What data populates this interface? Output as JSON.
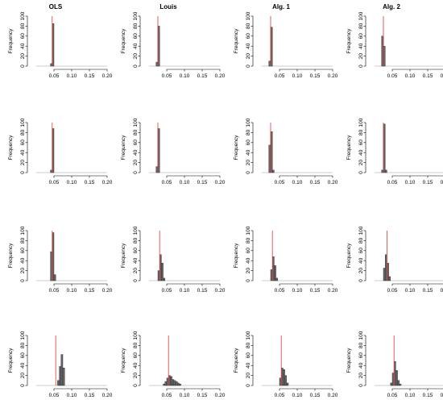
{
  "figure": {
    "column_titles": [
      "OLS",
      "Louis",
      "Alg. 1",
      "Alg. 2"
    ]
  },
  "chart_data": [
    {
      "type": "bar",
      "panel": "row1-OLS",
      "title": "OLS",
      "xlabel": "",
      "ylabel": "Frequency",
      "xlim": [
        0.0,
        0.2
      ],
      "ylim": [
        0,
        100
      ],
      "xticks": [
        "0.05",
        "0.10",
        "0.15",
        "0.20"
      ],
      "yticks": [
        "0",
        "20",
        "40",
        "60",
        "80",
        "100"
      ],
      "reference_line": 0.045,
      "bins_x": [
        0.04,
        0.045
      ],
      "values": [
        5,
        85
      ]
    },
    {
      "type": "bar",
      "panel": "row1-Louis",
      "title": "Louis",
      "xlabel": "",
      "ylabel": "Frequency",
      "xlim": [
        0.0,
        0.2
      ],
      "ylim": [
        0,
        100
      ],
      "xticks": [
        "0.05",
        "0.10",
        "0.15",
        "0.20"
      ],
      "yticks": [
        "0",
        "20",
        "40",
        "60",
        "80",
        "100"
      ],
      "reference_line": 0.025,
      "bins_x": [
        0.02,
        0.025
      ],
      "values": [
        8,
        80
      ]
    },
    {
      "type": "bar",
      "panel": "row1-Alg1",
      "title": "Alg. 1",
      "xlabel": "",
      "ylabel": "Frequency",
      "xlim": [
        0.0,
        0.2
      ],
      "ylim": [
        0,
        100
      ],
      "xticks": [
        "0.05",
        "0.10",
        "0.15",
        "0.20"
      ],
      "yticks": [
        "0",
        "20",
        "40",
        "60",
        "80",
        "100"
      ],
      "reference_line": 0.025,
      "bins_x": [
        0.02,
        0.025
      ],
      "values": [
        10,
        78
      ]
    },
    {
      "type": "bar",
      "panel": "row1-Alg2",
      "title": "Alg. 2",
      "xlabel": "",
      "ylabel": "Frequency",
      "xlim": [
        0.0,
        0.2
      ],
      "ylim": [
        0,
        100
      ],
      "xticks": [
        "0.05",
        "0.10",
        "0.15",
        "0.20"
      ],
      "yticks": [
        "0",
        "20",
        "40",
        "60",
        "80",
        "100"
      ],
      "reference_line": 0.025,
      "bins_x": [
        0.02,
        0.025
      ],
      "values": [
        60,
        40
      ]
    },
    {
      "type": "bar",
      "panel": "row2-OLS",
      "xlabel": "",
      "ylabel": "Frequency",
      "xlim": [
        0.0,
        0.2
      ],
      "ylim": [
        0,
        100
      ],
      "xticks": [
        "0.05",
        "0.10",
        "0.15",
        "0.20"
      ],
      "yticks": [
        "0",
        "20",
        "40",
        "60",
        "80",
        "100"
      ],
      "reference_line": 0.045,
      "bins_x": [
        0.04,
        0.045
      ],
      "values": [
        5,
        88
      ]
    },
    {
      "type": "bar",
      "panel": "row2-Louis",
      "xlabel": "",
      "ylabel": "Frequency",
      "xlim": [
        0.0,
        0.2
      ],
      "ylim": [
        0,
        100
      ],
      "xticks": [
        "0.05",
        "0.10",
        "0.15",
        "0.20"
      ],
      "yticks": [
        "0",
        "20",
        "40",
        "60",
        "80",
        "100"
      ],
      "reference_line": 0.025,
      "bins_x": [
        0.02,
        0.025
      ],
      "values": [
        12,
        88
      ]
    },
    {
      "type": "bar",
      "panel": "row2-Alg1",
      "xlabel": "",
      "ylabel": "Frequency",
      "xlim": [
        0.0,
        0.2
      ],
      "ylim": [
        0,
        100
      ],
      "xticks": [
        "0.05",
        "0.10",
        "0.15",
        "0.20"
      ],
      "yticks": [
        "0",
        "20",
        "40",
        "60",
        "80",
        "100"
      ],
      "reference_line": 0.025,
      "bins_x": [
        0.02,
        0.025,
        0.03
      ],
      "values": [
        55,
        82,
        5
      ]
    },
    {
      "type": "bar",
      "panel": "row2-Alg2",
      "xlabel": "",
      "ylabel": "Frequency",
      "xlim": [
        0.0,
        0.2
      ],
      "ylim": [
        0,
        100
      ],
      "xticks": [
        "0.05",
        "0.10",
        "0.15",
        "0.20"
      ],
      "yticks": [
        "0",
        "20",
        "40",
        "60",
        "80",
        "100"
      ],
      "reference_line": 0.025,
      "bins_x": [
        0.02,
        0.025,
        0.03
      ],
      "values": [
        5,
        97,
        5
      ]
    },
    {
      "type": "bar",
      "panel": "row3-OLS",
      "xlabel": "",
      "ylabel": "Frequency",
      "xlim": [
        0.0,
        0.2
      ],
      "ylim": [
        0,
        100
      ],
      "xticks": [
        "0.05",
        "0.10",
        "0.15",
        "0.20"
      ],
      "yticks": [
        "0",
        "20",
        "40",
        "60",
        "80",
        "100"
      ],
      "reference_line": 0.045,
      "bins_x": [
        0.04,
        0.045,
        0.05
      ],
      "values": [
        58,
        96,
        12
      ]
    },
    {
      "type": "bar",
      "panel": "row3-Louis",
      "xlabel": "",
      "ylabel": "Frequency",
      "xlim": [
        0.0,
        0.2
      ],
      "ylim": [
        0,
        100
      ],
      "xticks": [
        "0.05",
        "0.10",
        "0.15",
        "0.20"
      ],
      "yticks": [
        "0",
        "20",
        "40",
        "60",
        "80",
        "100"
      ],
      "reference_line": 0.03,
      "bins_x": [
        0.025,
        0.03,
        0.035,
        0.04
      ],
      "values": [
        20,
        52,
        35,
        5
      ]
    },
    {
      "type": "bar",
      "panel": "row3-Alg1",
      "xlabel": "",
      "ylabel": "Frequency",
      "xlim": [
        0.0,
        0.2
      ],
      "ylim": [
        0,
        100
      ],
      "xticks": [
        "0.05",
        "0.10",
        "0.15",
        "0.20"
      ],
      "yticks": [
        "0",
        "20",
        "40",
        "60",
        "80",
        "100"
      ],
      "reference_line": 0.03,
      "bins_x": [
        0.025,
        0.03,
        0.035,
        0.04
      ],
      "values": [
        22,
        48,
        30,
        5
      ]
    },
    {
      "type": "bar",
      "panel": "row3-Alg2",
      "xlabel": "",
      "ylabel": "Frequency",
      "xlim": [
        0.0,
        0.2
      ],
      "ylim": [
        0,
        100
      ],
      "xticks": [
        "0.05",
        "0.10",
        "0.15",
        "0.20"
      ],
      "yticks": [
        "0",
        "20",
        "40",
        "60",
        "80",
        "100"
      ],
      "reference_line": 0.035,
      "bins_x": [
        0.025,
        0.03,
        0.035,
        0.04
      ],
      "values": [
        25,
        52,
        35,
        8
      ]
    },
    {
      "type": "bar",
      "panel": "row4-OLS",
      "xlabel": "",
      "ylabel": "Frequency",
      "xlim": [
        0.0,
        0.2
      ],
      "ylim": [
        0,
        100
      ],
      "xticks": [
        "0.05",
        "0.10",
        "0.15",
        "0.20"
      ],
      "yticks": [
        "0",
        "20",
        "40",
        "60",
        "80",
        "100"
      ],
      "reference_line": 0.055,
      "bins_x": [
        0.06,
        0.065,
        0.07,
        0.075
      ],
      "values": [
        10,
        38,
        62,
        35
      ]
    },
    {
      "type": "bar",
      "panel": "row4-Louis",
      "xlabel": "",
      "ylabel": "Frequency",
      "xlim": [
        0.0,
        0.2
      ],
      "ylim": [
        0,
        100
      ],
      "xticks": [
        "0.05",
        "0.10",
        "0.15",
        "0.20"
      ],
      "yticks": [
        "0",
        "20",
        "40",
        "60",
        "80",
        "100"
      ],
      "reference_line": 0.055,
      "bins_x": [
        0.04,
        0.045,
        0.05,
        0.055,
        0.06,
        0.065,
        0.07,
        0.075,
        0.08,
        0.085
      ],
      "values": [
        3,
        8,
        15,
        20,
        18,
        12,
        10,
        8,
        5,
        3
      ]
    },
    {
      "type": "bar",
      "panel": "row4-Alg1",
      "xlabel": "",
      "ylabel": "Frequency",
      "xlim": [
        0.0,
        0.2
      ],
      "ylim": [
        0,
        100
      ],
      "xticks": [
        "0.05",
        "0.10",
        "0.15",
        "0.20"
      ],
      "yticks": [
        "0",
        "20",
        "40",
        "60",
        "80",
        "100"
      ],
      "reference_line": 0.055,
      "bins_x": [
        0.05,
        0.055,
        0.06,
        0.065,
        0.07
      ],
      "values": [
        15,
        35,
        32,
        20,
        5
      ]
    },
    {
      "type": "bar",
      "panel": "row4-Alg2",
      "xlabel": "",
      "ylabel": "Frequency",
      "xlim": [
        0.0,
        0.2
      ],
      "ylim": [
        0,
        100
      ],
      "xticks": [
        "0.05",
        "0.10",
        "0.15",
        "0.20"
      ],
      "yticks": [
        "0",
        "20",
        "40",
        "60",
        "80",
        "100"
      ],
      "reference_line": 0.055,
      "bins_x": [
        0.045,
        0.05,
        0.055,
        0.06,
        0.065,
        0.07
      ],
      "values": [
        5,
        25,
        48,
        30,
        10,
        3
      ]
    }
  ]
}
